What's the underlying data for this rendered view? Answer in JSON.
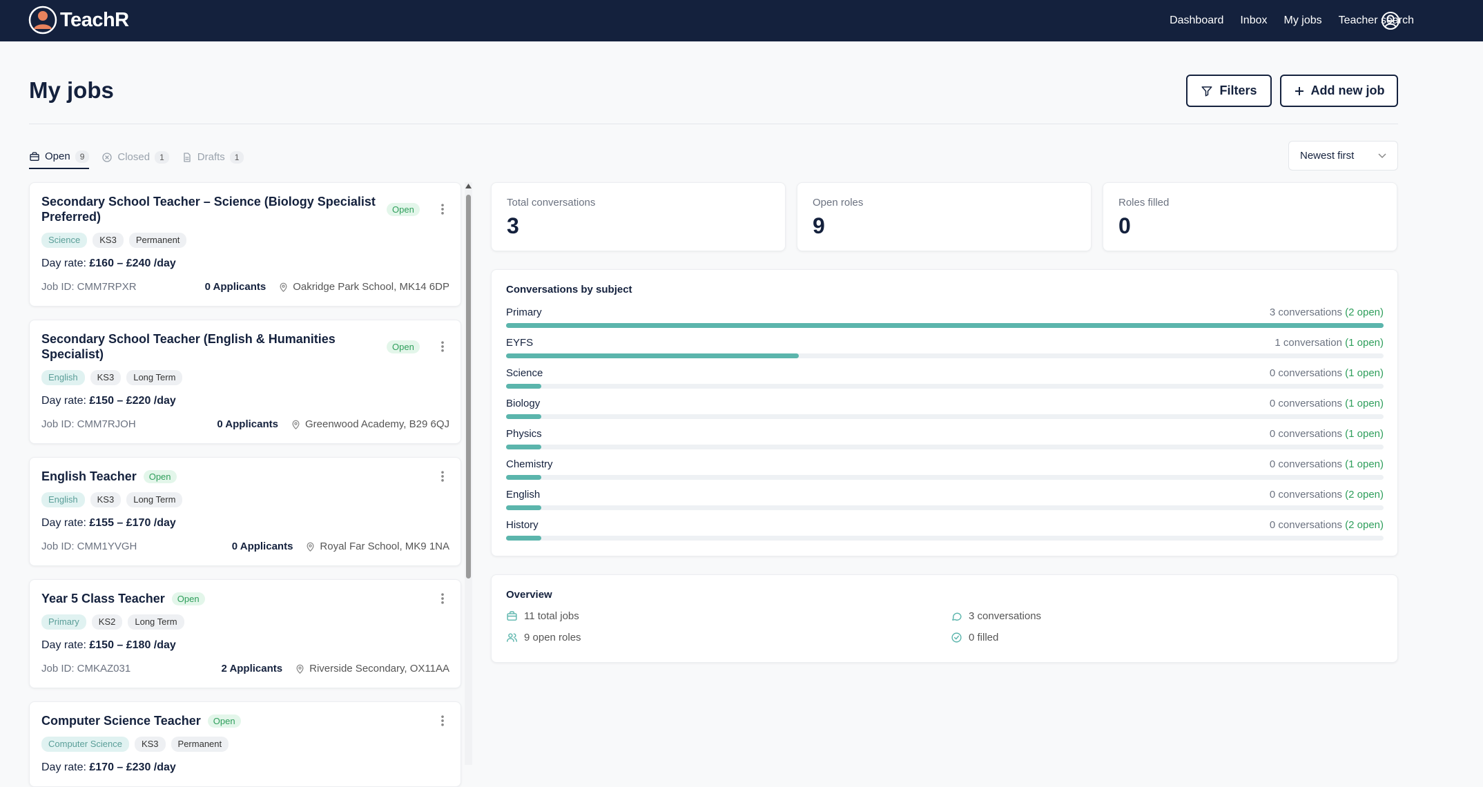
{
  "nav": {
    "brand": "TeachR",
    "links": [
      "Dashboard",
      "Inbox",
      "My jobs",
      "Teacher search"
    ]
  },
  "header": {
    "title": "My jobs",
    "filters": "Filters",
    "add_job": "Add new job"
  },
  "tabs": [
    {
      "label": "Open",
      "count": "9"
    },
    {
      "label": "Closed",
      "count": "1"
    },
    {
      "label": "Drafts",
      "count": "1"
    }
  ],
  "sort": "Newest first",
  "jobs": [
    {
      "title": "Secondary School Teacher – Science (Biology Specialist Preferred)",
      "status": "Open",
      "tags": [
        "Science",
        "KS3",
        "Permanent"
      ],
      "rate_label": "Day rate:",
      "rate": "£160 – £240 /day",
      "job_id": "Job ID: CMM7RPXR",
      "applicants": "0 Applicants",
      "location": "Oakridge Park School, MK14 6DP"
    },
    {
      "title": "Secondary School Teacher (English & Humanities Specialist)",
      "status": "Open",
      "tags": [
        "English",
        "KS3",
        "Long Term"
      ],
      "rate_label": "Day rate:",
      "rate": "£150 – £220 /day",
      "job_id": "Job ID: CMM7RJOH",
      "applicants": "0 Applicants",
      "location": "Greenwood Academy, B29 6QJ"
    },
    {
      "title": "English Teacher",
      "status": "Open",
      "tags": [
        "English",
        "KS3",
        "Long Term"
      ],
      "rate_label": "Day rate:",
      "rate": "£155 – £170 /day",
      "job_id": "Job ID: CMM1YVGH",
      "applicants": "0 Applicants",
      "location": "Royal Far School, MK9 1NA"
    },
    {
      "title": "Year 5 Class Teacher",
      "status": "Open",
      "tags": [
        "Primary",
        "KS2",
        "Long Term"
      ],
      "rate_label": "Day rate:",
      "rate": "£150 – £180 /day",
      "job_id": "Job ID: CMKAZ031",
      "applicants": "2 Applicants",
      "location": "Riverside Secondary, OX11AA"
    },
    {
      "title": "Computer Science Teacher",
      "status": "Open",
      "tags": [
        "Computer Science",
        "KS3",
        "Permanent"
      ],
      "rate_label": "Day rate:",
      "rate": "£170 – £230 /day"
    }
  ],
  "stats": [
    {
      "label": "Total conversations",
      "value": "3"
    },
    {
      "label": "Open roles",
      "value": "9"
    },
    {
      "label": "Roles filled",
      "value": "0"
    }
  ],
  "subjects": {
    "title": "Conversations by subject",
    "rows": [
      {
        "name": "Primary",
        "count": "3 conversations",
        "open": "(2 open)"
      },
      {
        "name": "EYFS",
        "count": "1 conversation",
        "open": "(1 open)"
      },
      {
        "name": "Science",
        "count": "0 conversations",
        "open": "(1 open)"
      },
      {
        "name": "Biology",
        "count": "0 conversations",
        "open": "(1 open)"
      },
      {
        "name": "Physics",
        "count": "0 conversations",
        "open": "(1 open)"
      },
      {
        "name": "Chemistry",
        "count": "0 conversations",
        "open": "(1 open)"
      },
      {
        "name": "English",
        "count": "0 conversations",
        "open": "(2 open)"
      },
      {
        "name": "History",
        "count": "0 conversations",
        "open": "(2 open)"
      }
    ]
  },
  "overview": {
    "title": "Overview",
    "items": [
      "11 total jobs",
      "3 conversations",
      "9 open roles",
      "0 filled"
    ]
  }
}
